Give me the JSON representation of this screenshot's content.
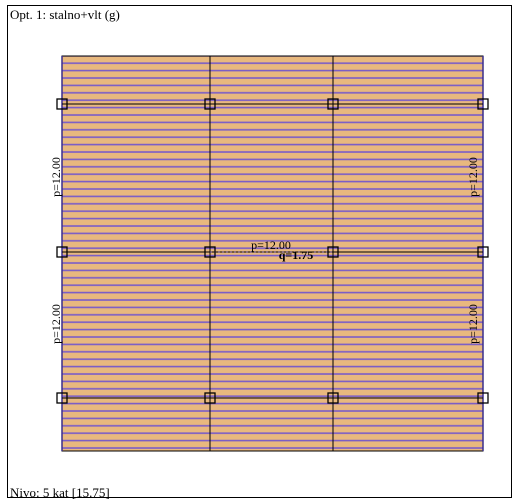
{
  "header": {
    "load_case": "Opt. 1: stalno+vlt (g)"
  },
  "footer": {
    "level": "Nivo: 5 kat [15.75]"
  },
  "colors": {
    "slab_fill": "#E8B87E",
    "hatch": "#7A5CC8",
    "grid_line": "#000000",
    "edge_line": "#3A2E8C"
  },
  "labels": {
    "left_top": "p=12.00",
    "left_bottom": "p=12.00",
    "right_top": "p=12.00",
    "right_bottom": "p=12.00",
    "center_p": "p=12.00",
    "center_q": "q=1.75"
  }
}
